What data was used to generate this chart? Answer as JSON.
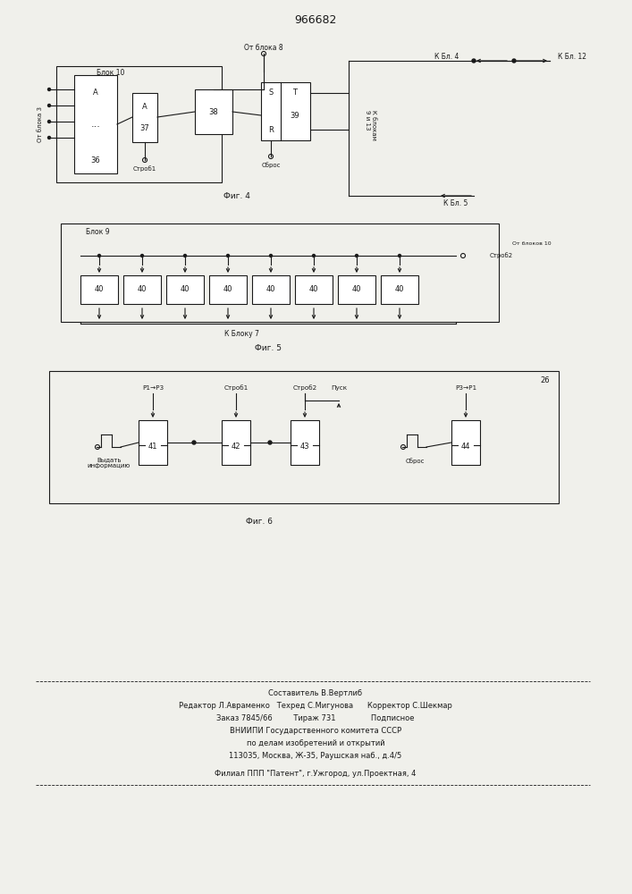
{
  "patent_number": "966682",
  "bg_color": "#f0f0eb",
  "line_color": "#1a1a1a",
  "fig4_label": "Фиг. 4",
  "fig5_label": "Фиг. 5",
  "fig6_label": "Фиг. 6",
  "footer_lines": [
    "Составитель В.Вертлиб",
    "Редактор Л.Авраменко   Техред С.Мигунова      Корректор С.Шекмар",
    "Заказ 7845/66         Тираж 731               Подписное",
    "ВНИИПИ Государственного комитета СССР",
    "по делам изобретений и открытий",
    "113035, Москва, Ж-35, Раушская наб., д.4/5",
    "Филиал ППП \"Патент\", г.Ужгород, ул.Проектная, 4"
  ]
}
